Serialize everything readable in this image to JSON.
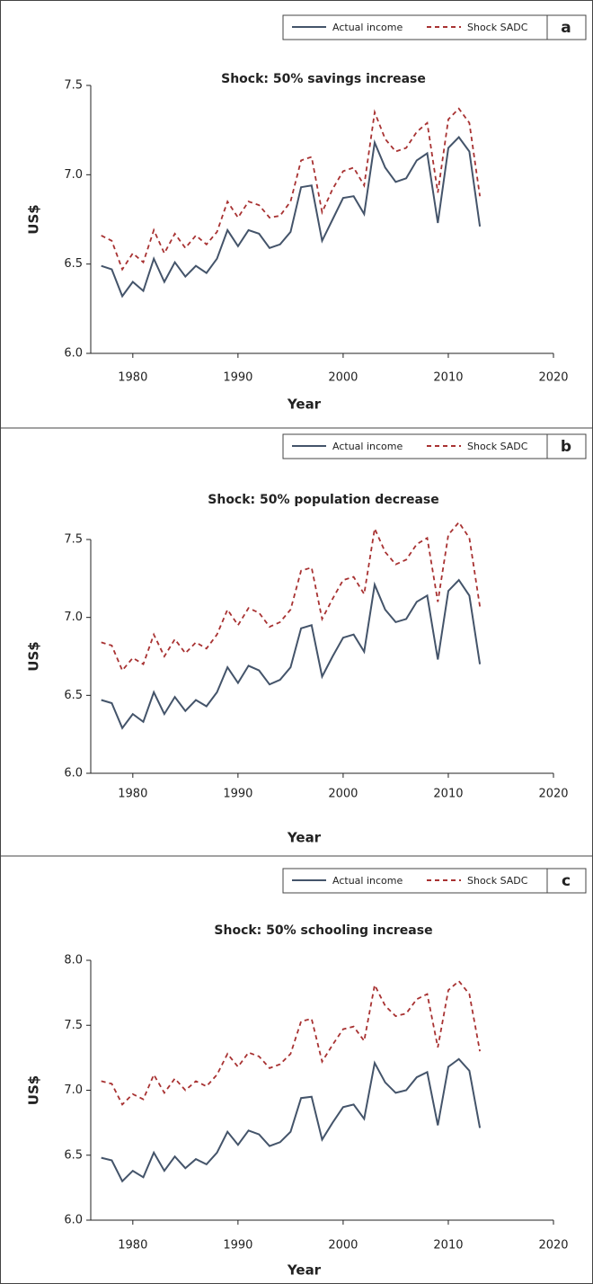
{
  "chart_data": [
    {
      "type": "line",
      "panel_label": "a",
      "title": "Shock: 50% savings increase",
      "x_label": "Year",
      "y_label": "US$",
      "x": [
        1977,
        1978,
        1979,
        1980,
        1981,
        1982,
        1983,
        1984,
        1985,
        1986,
        1987,
        1988,
        1989,
        1990,
        1991,
        1992,
        1993,
        1994,
        1995,
        1996,
        1997,
        1998,
        1999,
        2000,
        2001,
        2002,
        2003,
        2004,
        2005,
        2006,
        2007,
        2008,
        2009,
        2010,
        2011,
        2012,
        2013
      ],
      "series": [
        {
          "name": "Actual income",
          "color": "#44546a",
          "dash": false,
          "values": [
            6.49,
            6.47,
            6.32,
            6.4,
            6.35,
            6.53,
            6.4,
            6.51,
            6.43,
            6.49,
            6.45,
            6.53,
            6.69,
            6.6,
            6.69,
            6.67,
            6.59,
            6.61,
            6.68,
            6.93,
            6.94,
            6.63,
            6.75,
            6.87,
            6.88,
            6.78,
            7.18,
            7.04,
            6.96,
            6.98,
            7.08,
            7.12,
            6.73,
            7.15,
            7.21,
            7.13,
            6.71
          ]
        },
        {
          "name": "Shock SADC",
          "color": "#a83232",
          "dash": true,
          "values": [
            6.66,
            6.63,
            6.47,
            6.56,
            6.51,
            6.69,
            6.56,
            6.67,
            6.59,
            6.66,
            6.61,
            6.68,
            6.85,
            6.76,
            6.85,
            6.83,
            6.76,
            6.77,
            6.85,
            7.08,
            7.1,
            6.79,
            6.92,
            7.02,
            7.04,
            6.94,
            7.35,
            7.2,
            7.13,
            7.15,
            7.24,
            7.29,
            6.9,
            7.31,
            7.37,
            7.29,
            6.88
          ]
        }
      ],
      "xlim": [
        1976,
        2020
      ],
      "xticks": [
        1980,
        1990,
        2000,
        2010,
        2020
      ],
      "ylim": [
        6,
        7.5
      ],
      "yticks": [
        {
          "value": 6,
          "label": "6.0"
        },
        6.5,
        {
          "value": 7,
          "label": "7.0"
        },
        7.5
      ]
    },
    {
      "type": "line",
      "panel_label": "b",
      "title": "Shock: 50% population decrease",
      "x_label": "Year",
      "y_label": "US$",
      "x": [
        1977,
        1978,
        1979,
        1980,
        1981,
        1982,
        1983,
        1984,
        1985,
        1986,
        1987,
        1988,
        1989,
        1990,
        1991,
        1992,
        1993,
        1994,
        1995,
        1996,
        1997,
        1998,
        1999,
        2000,
        2001,
        2002,
        2003,
        2004,
        2005,
        2006,
        2007,
        2008,
        2009,
        2010,
        2011,
        2012,
        2013
      ],
      "series": [
        {
          "name": "Actual income",
          "color": "#44546a",
          "dash": false,
          "values": [
            6.47,
            6.45,
            6.29,
            6.38,
            6.33,
            6.52,
            6.38,
            6.49,
            6.4,
            6.47,
            6.43,
            6.52,
            6.68,
            6.58,
            6.69,
            6.66,
            6.57,
            6.6,
            6.68,
            6.93,
            6.95,
            6.62,
            6.75,
            6.87,
            6.89,
            6.78,
            7.21,
            7.05,
            6.97,
            6.99,
            7.1,
            7.14,
            6.73,
            7.17,
            7.24,
            7.14,
            6.7
          ]
        },
        {
          "name": "Shock SADC",
          "color": "#a83232",
          "dash": true,
          "values": [
            6.84,
            6.82,
            6.66,
            6.74,
            6.7,
            6.89,
            6.75,
            6.86,
            6.77,
            6.84,
            6.8,
            6.89,
            7.05,
            6.95,
            7.06,
            7.03,
            6.94,
            6.97,
            7.05,
            7.3,
            7.32,
            6.99,
            7.12,
            7.24,
            7.26,
            7.15,
            7.57,
            7.42,
            7.34,
            7.37,
            7.47,
            7.51,
            7.1,
            7.53,
            7.61,
            7.51,
            7.07
          ]
        }
      ],
      "xlim": [
        1976,
        2020
      ],
      "xticks": [
        1980,
        1990,
        2000,
        2010,
        2020
      ],
      "ylim": [
        6,
        7.5
      ],
      "yticks": [
        {
          "value": 6,
          "label": "6.0"
        },
        6.5,
        {
          "value": 7,
          "label": "7.0"
        },
        7.5
      ]
    },
    {
      "type": "line",
      "panel_label": "c",
      "title": "Shock: 50% schooling increase",
      "x_label": "Year",
      "y_label": "US$",
      "x": [
        1977,
        1978,
        1979,
        1980,
        1981,
        1982,
        1983,
        1984,
        1985,
        1986,
        1987,
        1988,
        1989,
        1990,
        1991,
        1992,
        1993,
        1994,
        1995,
        1996,
        1997,
        1998,
        1999,
        2000,
        2001,
        2002,
        2003,
        2004,
        2005,
        2006,
        2007,
        2008,
        2009,
        2010,
        2011,
        2012,
        2013
      ],
      "series": [
        {
          "name": "Actual income",
          "color": "#44546a",
          "dash": false,
          "values": [
            6.48,
            6.46,
            6.3,
            6.38,
            6.33,
            6.52,
            6.38,
            6.49,
            6.4,
            6.47,
            6.43,
            6.52,
            6.68,
            6.58,
            6.69,
            6.66,
            6.57,
            6.6,
            6.68,
            6.94,
            6.95,
            6.62,
            6.75,
            6.87,
            6.89,
            6.78,
            7.21,
            7.06,
            6.98,
            7.0,
            7.1,
            7.14,
            6.73,
            7.18,
            7.24,
            7.15,
            6.71
          ]
        },
        {
          "name": "Shock SADC",
          "color": "#a83232",
          "dash": true,
          "values": [
            7.07,
            7.05,
            6.89,
            6.97,
            6.93,
            7.12,
            6.98,
            7.09,
            7.0,
            7.07,
            7.03,
            7.12,
            7.28,
            7.18,
            7.29,
            7.26,
            7.17,
            7.2,
            7.28,
            7.53,
            7.55,
            7.22,
            7.35,
            7.47,
            7.49,
            7.38,
            7.81,
            7.65,
            7.57,
            7.59,
            7.7,
            7.74,
            7.33,
            7.77,
            7.84,
            7.74,
            7.3
          ]
        }
      ],
      "xlim": [
        1976,
        2020
      ],
      "xticks": [
        1980,
        1990,
        2000,
        2010,
        2020
      ],
      "ylim": [
        6,
        8
      ],
      "yticks": [
        {
          "value": 6,
          "label": "6.0"
        },
        6.5,
        {
          "value": 7,
          "label": "7.0"
        },
        7.5,
        {
          "value": 8,
          "label": "8.0"
        }
      ]
    }
  ]
}
